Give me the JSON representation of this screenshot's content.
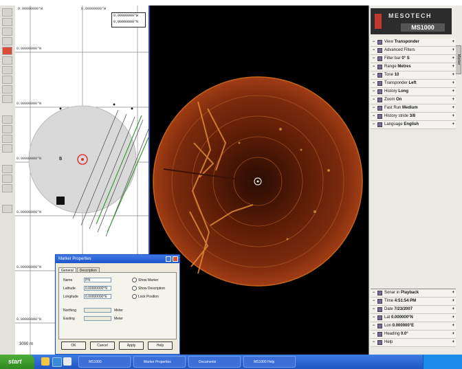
{
  "brand": {
    "name": "MESOTECH",
    "model": "MS1000"
  },
  "nav_map": {
    "top_coords": [
      "0.00000000°W",
      "0.00000000°W"
    ],
    "left_coords": [
      "0.00000000°N",
      "0.00000000°N",
      "0.00000000°N",
      "0.00000000°N",
      "0.00000000°N",
      "0.00000000°N"
    ],
    "scale_box": [
      "0.00000000°W",
      "0.00000000°N"
    ],
    "scale_label": "3000 m",
    "vessel_marker": "B"
  },
  "settings": [
    {
      "label": "View",
      "value": "Transponder"
    },
    {
      "label": "Advanced Filters",
      "value": ""
    },
    {
      "label": "Filter bar",
      "value": "0° S"
    },
    {
      "label": "Range",
      "value": "Metres"
    },
    {
      "label": "Tone",
      "value": "10"
    },
    {
      "label": "Transponder",
      "value": "Left"
    },
    {
      "label": "History",
      "value": "Long"
    },
    {
      "label": "Zoom",
      "value": "On"
    },
    {
      "label": "Fast Run",
      "value": "Medium"
    },
    {
      "label": "History stride",
      "value": "3/8"
    },
    {
      "label": "Language",
      "value": "English"
    }
  ],
  "status": [
    {
      "label": "Sonar in",
      "value": "Playback"
    },
    {
      "label": "Time",
      "value": "4:51:54 PM"
    },
    {
      "label": "Date",
      "value": "7/23/2007"
    },
    {
      "label": "Lat",
      "value": "0.000000°N"
    },
    {
      "label": "Lon",
      "value": "0.000000°E"
    },
    {
      "label": "Heading",
      "value": "0.0°"
    },
    {
      "label": "Help",
      "value": ""
    }
  ],
  "side_tab": "Marker",
  "dialog": {
    "title": "Marker Properties",
    "tabs": [
      "General",
      "Description"
    ],
    "fields": [
      {
        "label": "Name",
        "value": "PN"
      },
      {
        "label": "Latitude",
        "value": "0.00000000°N"
      },
      {
        "label": "Longitude",
        "value": "0.00000000°E"
      },
      {
        "label": "Northing",
        "value": "",
        "unit": "Meter"
      },
      {
        "label": "Easting",
        "value": "",
        "unit": "Meter"
      }
    ],
    "radios": [
      "Show Marker",
      "Show Description",
      "Lock Position"
    ],
    "buttons": [
      "OK",
      "Cancel",
      "Apply",
      "Help"
    ]
  },
  "taskbar": {
    "start_label": "start",
    "tasks": [
      "MS1000",
      "Marker Properties",
      "Documents",
      "MS1000 Help"
    ]
  },
  "colors": {
    "accent": "#1f55c9",
    "sonar": "#c8641a",
    "taskbar": "#245edb"
  }
}
